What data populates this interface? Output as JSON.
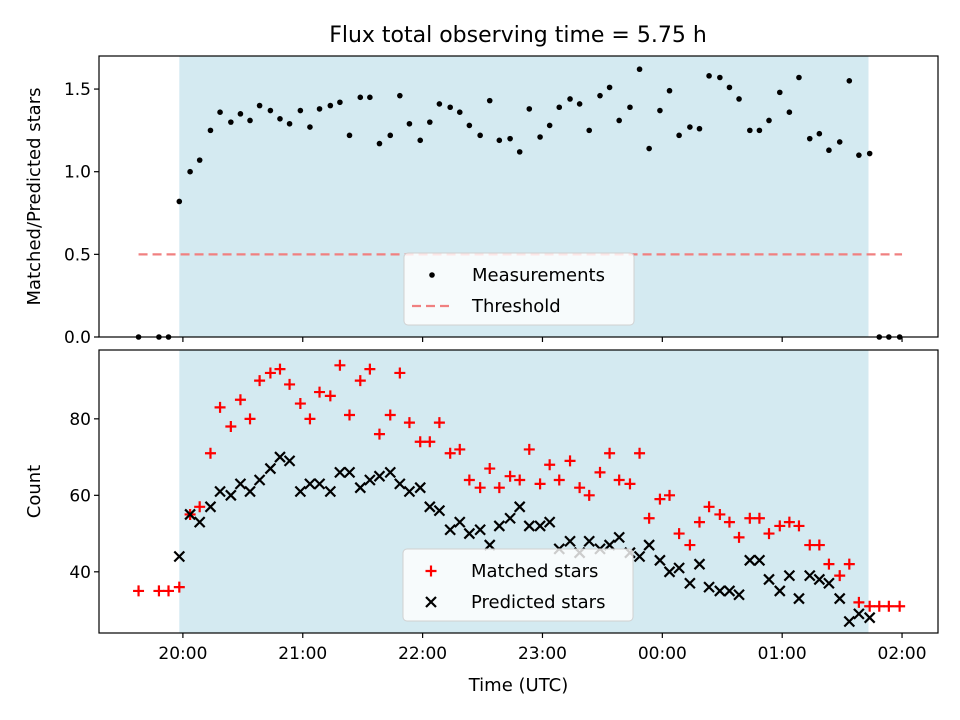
{
  "figure": {
    "title": "Flux total observing time = 5.75 h"
  },
  "chart_data": [
    {
      "type": "scatter",
      "panel": "top",
      "title": "Flux total observing time = 5.75 h",
      "xlabel": "",
      "ylabel": "Matched/Predicted stars",
      "x_unit": "hours UTC (24 = 00:00 next day)",
      "xlim": [
        19.3,
        26.3
      ],
      "ylim": [
        0,
        1.7
      ],
      "yticks": [
        0.0,
        0.5,
        1.0,
        1.5
      ],
      "ytick_labels": [
        "0.0",
        "0.5",
        "1.0",
        "1.5"
      ],
      "xticks": [
        20,
        21,
        22,
        23,
        24,
        25,
        26
      ],
      "xtick_labels": [
        "",
        "",
        "",
        "",
        "",
        "",
        ""
      ],
      "shaded_span": [
        19.97,
        25.72
      ],
      "shade_color": "#d4eaf1",
      "legend": {
        "placement": "lower-center",
        "entries": [
          "Measurements",
          "Threshold"
        ]
      },
      "series": [
        {
          "name": "Measurements",
          "marker": "dot",
          "color": "#000000",
          "x": [
            19.63,
            19.8,
            19.88,
            19.97,
            20.06,
            20.14,
            20.23,
            20.31,
            20.4,
            20.48,
            20.56,
            20.64,
            20.73,
            20.81,
            20.89,
            20.98,
            21.06,
            21.14,
            21.23,
            21.31,
            21.39,
            21.48,
            21.56,
            21.64,
            21.73,
            21.81,
            21.89,
            21.98,
            22.06,
            22.14,
            22.23,
            22.31,
            22.39,
            22.48,
            22.56,
            22.64,
            22.73,
            22.81,
            22.89,
            22.98,
            23.06,
            23.14,
            23.23,
            23.31,
            23.39,
            23.48,
            23.56,
            23.64,
            23.73,
            23.81,
            23.89,
            23.98,
            24.06,
            24.14,
            24.23,
            24.31,
            24.39,
            24.48,
            24.56,
            24.64,
            24.73,
            24.81,
            24.89,
            24.98,
            25.06,
            25.14,
            25.23,
            25.31,
            25.39,
            25.48,
            25.56,
            25.64,
            25.73,
            25.81,
            25.89,
            25.98
          ],
          "y": [
            0,
            0,
            0,
            0.82,
            1.0,
            1.07,
            1.25,
            1.36,
            1.3,
            1.35,
            1.31,
            1.4,
            1.37,
            1.32,
            1.29,
            1.37,
            1.27,
            1.38,
            1.4,
            1.42,
            1.22,
            1.45,
            1.45,
            1.17,
            1.22,
            1.46,
            1.29,
            1.19,
            1.3,
            1.41,
            1.39,
            1.36,
            1.28,
            1.22,
            1.43,
            1.19,
            1.2,
            1.12,
            1.38,
            1.21,
            1.28,
            1.39,
            1.44,
            1.41,
            1.25,
            1.46,
            1.51,
            1.31,
            1.39,
            1.62,
            1.14,
            1.37,
            1.49,
            1.22,
            1.27,
            1.26,
            1.58,
            1.57,
            1.51,
            1.44,
            1.25,
            1.25,
            1.31,
            1.48,
            1.36,
            1.57,
            1.2,
            1.23,
            1.13,
            1.18,
            1.55,
            1.1,
            1.11,
            0,
            0,
            0
          ]
        },
        {
          "name": "Threshold",
          "style": "dashed-line",
          "color": "#f08080",
          "x": [
            19.63,
            26.0
          ],
          "y": [
            0.5,
            0.5
          ]
        }
      ]
    },
    {
      "type": "scatter",
      "panel": "bottom",
      "title": "",
      "xlabel": "Time (UTC)",
      "ylabel": "Count",
      "x_unit": "hours UTC (24 = 00:00 next day)",
      "xlim": [
        19.3,
        26.3
      ],
      "ylim": [
        24,
        98
      ],
      "yticks": [
        40,
        60,
        80
      ],
      "ytick_labels": [
        "40",
        "60",
        "80"
      ],
      "xticks": [
        20,
        21,
        22,
        23,
        24,
        25,
        26
      ],
      "xtick_labels": [
        "20:00",
        "21:00",
        "22:00",
        "23:00",
        "00:00",
        "01:00",
        "02:00"
      ],
      "shaded_span": [
        19.97,
        25.72
      ],
      "shade_color": "#d4eaf1",
      "legend": {
        "placement": "lower-center",
        "entries": [
          "Matched stars",
          "Predicted stars"
        ]
      },
      "series": [
        {
          "name": "Matched stars",
          "marker": "plus",
          "color": "#ff0000",
          "x": [
            19.63,
            19.8,
            19.88,
            19.97,
            20.06,
            20.14,
            20.23,
            20.31,
            20.4,
            20.48,
            20.56,
            20.64,
            20.73,
            20.81,
            20.89,
            20.98,
            21.06,
            21.14,
            21.23,
            21.31,
            21.39,
            21.48,
            21.56,
            21.64,
            21.73,
            21.81,
            21.89,
            21.98,
            22.06,
            22.14,
            22.23,
            22.31,
            22.39,
            22.48,
            22.56,
            22.64,
            22.73,
            22.81,
            22.89,
            22.98,
            23.06,
            23.14,
            23.23,
            23.31,
            23.39,
            23.48,
            23.56,
            23.64,
            23.73,
            23.81,
            23.89,
            23.98,
            24.06,
            24.14,
            24.23,
            24.31,
            24.39,
            24.48,
            24.56,
            24.64,
            24.73,
            24.81,
            24.89,
            24.98,
            25.06,
            25.14,
            25.23,
            25.31,
            25.39,
            25.48,
            25.56,
            25.64,
            25.73,
            25.81,
            25.89,
            25.98
          ],
          "y": [
            35,
            35,
            35,
            36,
            55,
            57,
            71,
            83,
            78,
            85,
            80,
            90,
            92,
            93,
            89,
            84,
            80,
            87,
            86,
            94,
            81,
            90,
            93,
            76,
            81,
            92,
            79,
            74,
            74,
            79,
            71,
            72,
            64,
            62,
            67,
            62,
            65,
            64,
            72,
            63,
            68,
            64,
            69,
            62,
            60,
            66,
            71,
            64,
            63,
            71,
            54,
            59,
            60,
            50,
            47,
            53,
            57,
            55,
            53,
            49,
            54,
            54,
            50,
            52,
            53,
            52,
            47,
            47,
            42,
            39,
            42,
            32,
            31,
            31,
            31,
            31
          ]
        },
        {
          "name": "Predicted stars",
          "marker": "x",
          "color": "#000000",
          "x": [
            19.97,
            20.06,
            20.14,
            20.23,
            20.31,
            20.4,
            20.48,
            20.56,
            20.64,
            20.73,
            20.81,
            20.89,
            20.98,
            21.06,
            21.14,
            21.23,
            21.31,
            21.39,
            21.48,
            21.56,
            21.64,
            21.73,
            21.81,
            21.89,
            21.98,
            22.06,
            22.14,
            22.23,
            22.31,
            22.39,
            22.48,
            22.56,
            22.64,
            22.73,
            22.81,
            22.89,
            22.98,
            23.06,
            23.14,
            23.23,
            23.31,
            23.39,
            23.48,
            23.56,
            23.64,
            23.73,
            23.81,
            23.89,
            23.98,
            24.06,
            24.14,
            24.23,
            24.31,
            24.39,
            24.48,
            24.56,
            24.64,
            24.73,
            24.81,
            24.89,
            24.98,
            25.06,
            25.14,
            25.23,
            25.31,
            25.39,
            25.48,
            25.56,
            25.64,
            25.73
          ],
          "y": [
            44,
            55,
            53,
            57,
            61,
            60,
            63,
            61,
            64,
            67,
            70,
            69,
            61,
            63,
            63,
            61,
            66,
            66,
            62,
            64,
            65,
            66,
            63,
            61,
            62,
            57,
            56,
            51,
            53,
            50,
            51,
            47,
            52,
            54,
            57,
            52,
            52,
            53,
            46,
            48,
            45,
            48,
            46,
            47,
            49,
            45,
            44,
            47,
            43,
            40,
            41,
            37,
            42,
            36,
            35,
            35,
            34,
            43,
            43,
            38,
            35,
            39,
            33,
            39,
            38,
            37,
            33,
            27,
            29,
            28
          ]
        }
      ]
    }
  ]
}
